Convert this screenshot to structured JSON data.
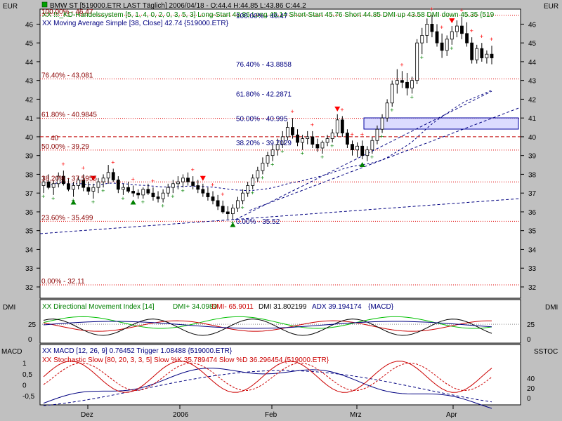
{
  "header": {
    "title": "BMW ST [519000.ETR LAST Täglich] 2006/04/18 - O:44.4 H:44.85 L:43.86 C:44.2",
    "kd_line": "XX !!!_KD-Handelssystem [5, 1, 4, 0, 2, 0, 3, 5, 3] Long-Start 43.86 Long 45.14 Short-Start 45.76 Short 44.85 DMI up 43.58 DMI down 45.35 {519",
    "ma_line": "XX Moving Average Simple [38, Close] 42.74 {519000.ETR}",
    "currency_left": "EUR",
    "currency_right": "EUR"
  },
  "price_axis": {
    "ticks": [
      32,
      33,
      34,
      35,
      36,
      37,
      38,
      39,
      40,
      41,
      42,
      43,
      44,
      45,
      46
    ],
    "range": [
      31.4,
      46.8
    ]
  },
  "fibonacci_left": [
    {
      "label": "100.00% - 46.47",
      "value": 46.47
    },
    {
      "label": "76.40% - 43.081",
      "value": 43.081
    },
    {
      "label": "61.80% - 40.9845",
      "value": 40.9845
    },
    {
      "label": "50.00% - 39.29",
      "value": 39.29
    },
    {
      "label": "38.20% - 37.5955",
      "value": 37.5955
    },
    {
      "label": "23.60% - 35.499",
      "value": 35.499
    },
    {
      "label": "0.00% - 32.11",
      "value": 32.11
    }
  ],
  "fibonacci_center": [
    {
      "label": "100.00% - 46.47",
      "value": 46.47
    },
    {
      "label": "76.40% - 43.8858",
      "value": 43.8858
    },
    {
      "label": "61.80% - 42.2871",
      "value": 42.2871
    },
    {
      "label": "50.00% - 40.995",
      "value": 40.995
    },
    {
      "label": "38.20% - 39.7029",
      "value": 39.7029
    },
    {
      "label": "0.00% - 35.52",
      "value": 35.52
    }
  ],
  "level_40_label": "40",
  "dmi_panel": {
    "label_left": "DMI",
    "label_right": "DMI",
    "legend_prefix": "XX Directional Movement Index [14]",
    "dmi_plus": "DMI+ 34.0989",
    "dmi_minus": "DMI- 65.9011",
    "dmi": "DMI 31.802199",
    "adx": "ADX 39.194174",
    "suffix": "{MACD}",
    "ticks": [
      0,
      25
    ]
  },
  "macd_panel": {
    "label_left": "MACD",
    "label_right": "SSTOC",
    "legend_macd": "XX MACD [12, 26, 9] 0.76452 Trigger 1.08488 {519000.ETR}",
    "legend_stoch": "XX Stochastic Slow [80, 20, 3, 3, 5] Slow %K 35.789474 Slow %D 36.296454 {519000.ETR}",
    "ticks_left": [
      "1",
      "0,5",
      "0",
      "-0,5"
    ],
    "ticks_right": [
      "40",
      "20",
      "0"
    ]
  },
  "date_axis": {
    "labels": [
      "Dez",
      "2006",
      "Feb",
      "Mrz",
      "Apr"
    ]
  },
  "colors": {
    "background": "#c0c0c0",
    "plot": "#ffffff",
    "up_signal": "#008000",
    "down_signal": "#ff0000",
    "ma_line": "#000080",
    "fib_left": "#8b0000",
    "fib_center": "#000080"
  },
  "chart_data": {
    "type": "candlestick",
    "x_range": [
      "2005-11-07",
      "2006-04-18"
    ],
    "candles": [
      [
        37.4,
        37.9,
        37.0,
        37.6
      ],
      [
        37.6,
        38.0,
        37.2,
        37.3
      ],
      [
        37.3,
        37.7,
        36.9,
        37.5
      ],
      [
        37.5,
        38.1,
        37.3,
        37.9
      ],
      [
        37.9,
        38.2,
        37.4,
        37.5
      ],
      [
        37.5,
        37.8,
        37.1,
        37.2
      ],
      [
        37.2,
        37.6,
        36.8,
        37.4
      ],
      [
        37.4,
        37.9,
        37.2,
        37.7
      ],
      [
        37.7,
        38.0,
        37.1,
        37.3
      ],
      [
        37.3,
        37.6,
        36.9,
        37.1
      ],
      [
        37.1,
        37.5,
        36.7,
        37.3
      ],
      [
        37.3,
        37.8,
        37.0,
        37.6
      ],
      [
        37.6,
        38.0,
        37.3,
        37.8
      ],
      [
        37.8,
        38.5,
        37.5,
        38.1
      ],
      [
        38.1,
        38.3,
        37.6,
        37.7
      ],
      [
        37.7,
        37.9,
        37.0,
        37.2
      ],
      [
        37.2,
        37.5,
        36.9,
        37.3
      ],
      [
        37.3,
        37.6,
        37.0,
        37.1
      ],
      [
        37.1,
        37.4,
        36.8,
        37.0
      ],
      [
        37.0,
        37.2,
        36.7,
        36.9
      ],
      [
        36.9,
        37.3,
        36.7,
        37.2
      ],
      [
        37.2,
        37.5,
        36.9,
        37.0
      ],
      [
        37.0,
        37.3,
        36.6,
        36.8
      ],
      [
        36.8,
        37.1,
        36.5,
        36.7
      ],
      [
        36.7,
        37.2,
        36.5,
        37.0
      ],
      [
        37.0,
        37.5,
        36.8,
        37.3
      ],
      [
        37.3,
        37.7,
        37.0,
        37.5
      ],
      [
        37.5,
        37.9,
        37.2,
        37.6
      ],
      [
        37.6,
        38.0,
        37.3,
        37.8
      ],
      [
        37.8,
        38.1,
        37.4,
        37.6
      ],
      [
        37.6,
        37.9,
        37.2,
        37.4
      ],
      [
        37.4,
        37.7,
        37.0,
        37.2
      ],
      [
        37.2,
        37.5,
        36.8,
        37.0
      ],
      [
        37.0,
        37.3,
        36.6,
        36.8
      ],
      [
        36.8,
        37.1,
        36.4,
        36.6
      ],
      [
        36.6,
        36.9,
        36.1,
        36.3
      ],
      [
        36.3,
        36.6,
        35.9,
        36.0
      ],
      [
        36.0,
        36.3,
        35.6,
        35.9
      ],
      [
        35.9,
        36.4,
        35.6,
        36.2
      ],
      [
        36.2,
        36.8,
        36.0,
        36.6
      ],
      [
        36.6,
        37.2,
        36.4,
        37.0
      ],
      [
        37.0,
        37.6,
        36.8,
        37.4
      ],
      [
        37.4,
        38.0,
        37.2,
        37.8
      ],
      [
        37.8,
        38.4,
        37.6,
        38.2
      ],
      [
        38.2,
        38.9,
        38.0,
        38.6
      ],
      [
        38.6,
        39.2,
        38.4,
        39.0
      ],
      [
        39.0,
        39.6,
        38.7,
        39.3
      ],
      [
        39.3,
        39.9,
        39.0,
        39.6
      ],
      [
        39.6,
        40.3,
        39.4,
        40.0
      ],
      [
        40.0,
        40.8,
        39.8,
        40.5
      ],
      [
        40.5,
        41.0,
        39.9,
        40.1
      ],
      [
        40.1,
        40.4,
        39.5,
        39.7
      ],
      [
        39.7,
        40.1,
        39.3,
        39.9
      ],
      [
        39.9,
        40.3,
        39.6,
        40.0
      ],
      [
        40.0,
        40.3,
        39.4,
        39.6
      ],
      [
        39.6,
        39.9,
        39.2,
        39.4
      ],
      [
        39.4,
        39.8,
        39.1,
        39.7
      ],
      [
        39.7,
        40.1,
        39.5,
        39.9
      ],
      [
        39.9,
        40.4,
        39.7,
        40.2
      ],
      [
        40.2,
        41.2,
        40.0,
        40.9
      ],
      [
        40.9,
        41.1,
        40.0,
        40.2
      ],
      [
        40.2,
        40.4,
        39.4,
        39.6
      ],
      [
        39.6,
        39.8,
        39.0,
        39.3
      ],
      [
        39.3,
        39.7,
        38.9,
        39.5
      ],
      [
        39.5,
        39.8,
        38.8,
        39.0
      ],
      [
        39.0,
        39.5,
        38.7,
        39.3
      ],
      [
        39.3,
        40.0,
        39.1,
        39.8
      ],
      [
        39.8,
        40.6,
        39.6,
        40.4
      ],
      [
        40.4,
        41.2,
        40.2,
        41.0
      ],
      [
        41.0,
        42.0,
        40.8,
        41.8
      ],
      [
        41.8,
        43.0,
        41.6,
        42.8
      ],
      [
        42.8,
        43.6,
        42.3,
        43.0
      ],
      [
        43.0,
        43.5,
        42.6,
        42.9
      ],
      [
        42.9,
        43.4,
        42.2,
        42.6
      ],
      [
        42.6,
        43.2,
        42.3,
        43.0
      ],
      [
        43.0,
        45.2,
        42.8,
        45.0
      ],
      [
        45.0,
        45.8,
        44.4,
        45.4
      ],
      [
        45.4,
        46.3,
        45.0,
        46.0
      ],
      [
        46.0,
        46.47,
        45.3,
        45.6
      ],
      [
        45.6,
        46.0,
        44.8,
        45.0
      ],
      [
        45.0,
        45.5,
        44.2,
        44.6
      ],
      [
        44.6,
        45.4,
        44.3,
        45.2
      ],
      [
        45.2,
        45.9,
        44.9,
        45.6
      ],
      [
        45.6,
        46.2,
        45.3,
        45.9
      ],
      [
        45.9,
        46.4,
        45.2,
        45.5
      ],
      [
        45.5,
        46.1,
        44.8,
        45.0
      ],
      [
        45.0,
        45.3,
        43.9,
        44.1
      ],
      [
        44.1,
        44.9,
        43.9,
        44.7
      ],
      [
        44.7,
        45.0,
        44.0,
        44.2
      ],
      [
        44.2,
        44.6,
        43.9,
        44.4
      ],
      [
        44.4,
        44.85,
        43.86,
        44.2
      ]
    ]
  }
}
